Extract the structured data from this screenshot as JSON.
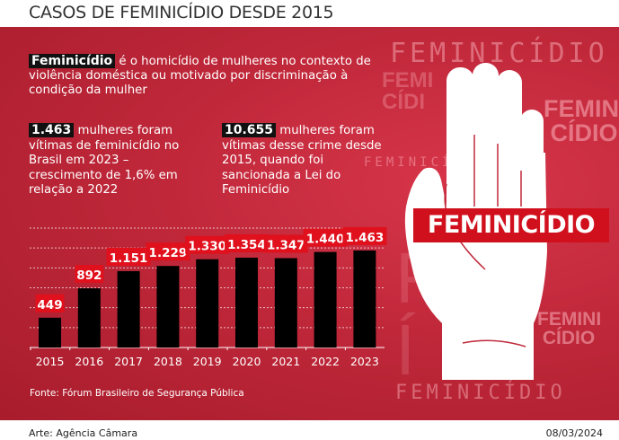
{
  "title": "CASOS DE FEMINICÍDIO DESDE 2015",
  "intro": {
    "highlight": "Feminicídio",
    "text": " é o homicídio de mulheres no contexto de violência doméstica ou motivado por discriminação à condição da mulher"
  },
  "stats": [
    {
      "highlight": "1.463",
      "text": " mulheres foram vítimas de feminicídio no Brasil em 2023 – crescimento de 1,6% em relação a 2022"
    },
    {
      "highlight": "10.655",
      "text": " mulheres foram vítimas desse crime desde 2015, quando foi sancionada a Lei do Feminicídio"
    }
  ],
  "banner": "FEMINICÍDIO",
  "watermark": "FEMINICÍDIO",
  "source": "Fonte: Fórum Brasileiro de Segurança Pública",
  "credit": "Arte: Agência Câmara",
  "date": "08/03/2024",
  "colors": {
    "bar": "#000000",
    "label_bg": "#e0101c",
    "panel": "#c0283a"
  },
  "chart_data": {
    "type": "bar",
    "title": "CASOS DE FEMINICÍDIO DESDE 2015",
    "categories": [
      "2015",
      "2016",
      "2017",
      "2018",
      "2019",
      "2020",
      "2021",
      "2022",
      "2023"
    ],
    "values": [
      449,
      892,
      1151,
      1229,
      1330,
      1354,
      1347,
      1440,
      1463
    ],
    "labels": [
      "449",
      "892",
      "1.151",
      "1.229",
      "1.330",
      "1.354",
      "1.347",
      "1.440",
      "1.463"
    ],
    "xlabel": "",
    "ylabel": "",
    "ylim": [
      0,
      1800
    ],
    "grid": true
  }
}
